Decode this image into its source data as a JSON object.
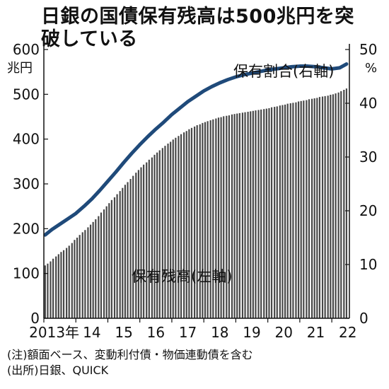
{
  "title": "日銀の国債保有残高は500兆円を突破している",
  "notes": [
    "(注)額面ベース、変動利付債・物価連動債を含む",
    "(出所)日銀、QUICK"
  ],
  "colors": {
    "bars": "#474747",
    "line": "#1f4a7a",
    "axis": "#111111",
    "background": "#ffffff"
  },
  "chart_data": {
    "type": "bar",
    "grid": false,
    "left_axis": {
      "unit": "兆円",
      "ticks": [
        "0",
        "100",
        "200",
        "300",
        "400",
        "500",
        "600"
      ],
      "range": [
        0,
        600
      ]
    },
    "right_axis": {
      "unit": "%",
      "ticks": [
        "0",
        "10",
        "20",
        "30",
        "40",
        "50"
      ],
      "range": [
        0,
        50
      ]
    },
    "x_axis": {
      "ticks": [
        "2013年",
        "14",
        "15",
        "16",
        "17",
        "18",
        "19",
        "20",
        "21",
        "22"
      ],
      "start_year": 2013,
      "end_year": 2022
    },
    "series": [
      {
        "name": "保有残高(左軸)",
        "axis": "left",
        "type": "bar",
        "x": [
          2013.04,
          2013.12,
          2013.21,
          2013.29,
          2013.38,
          2013.46,
          2013.54,
          2013.62,
          2013.71,
          2013.79,
          2013.88,
          2013.96,
          2014.04,
          2014.12,
          2014.21,
          2014.29,
          2014.38,
          2014.46,
          2014.54,
          2014.62,
          2014.71,
          2014.79,
          2014.88,
          2014.96,
          2015.04,
          2015.12,
          2015.21,
          2015.29,
          2015.38,
          2015.46,
          2015.54,
          2015.62,
          2015.71,
          2015.79,
          2015.88,
          2015.96,
          2016.04,
          2016.12,
          2016.21,
          2016.29,
          2016.38,
          2016.46,
          2016.54,
          2016.62,
          2016.71,
          2016.79,
          2016.88,
          2016.96,
          2017.04,
          2017.12,
          2017.21,
          2017.29,
          2017.38,
          2017.46,
          2017.54,
          2017.62,
          2017.71,
          2017.79,
          2017.88,
          2017.96,
          2018.04,
          2018.12,
          2018.21,
          2018.29,
          2018.38,
          2018.46,
          2018.54,
          2018.62,
          2018.71,
          2018.79,
          2018.88,
          2018.96,
          2019.04,
          2019.12,
          2019.21,
          2019.29,
          2019.38,
          2019.46,
          2019.54,
          2019.62,
          2019.71,
          2019.79,
          2019.88,
          2019.96,
          2020.04,
          2020.12,
          2020.21,
          2020.29,
          2020.38,
          2020.46,
          2020.54,
          2020.62,
          2020.71,
          2020.79,
          2020.88,
          2020.96,
          2021.04,
          2021.12,
          2021.21,
          2021.29,
          2021.38,
          2021.46,
          2021.54,
          2021.62,
          2021.71,
          2021.79,
          2021.88,
          2021.96,
          2022.04,
          2022.12,
          2022.21,
          2022.29,
          2022.38,
          2022.46
        ],
        "values": [
          118,
          122,
          127,
          133,
          138,
          143,
          148,
          152,
          157,
          162,
          168,
          175,
          180,
          186,
          192,
          197,
          203,
          209,
          215,
          221,
          228,
          236,
          243,
          250,
          257,
          264,
          270,
          277,
          284,
          291,
          298,
          304,
          311,
          318,
          325,
          331,
          337,
          343,
          348,
          354,
          359,
          365,
          370,
          375,
          380,
          385,
          390,
          394,
          399,
          403,
          407,
          411,
          415,
          418,
          422,
          425,
          428,
          431,
          433,
          436,
          438,
          440,
          442,
          444,
          446,
          448,
          449,
          451,
          452,
          453,
          455,
          456,
          457,
          458,
          459,
          460,
          461,
          462,
          463,
          464,
          465,
          466,
          467,
          468,
          469,
          471,
          472,
          473,
          475,
          476,
          477,
          479,
          480,
          481,
          482,
          484,
          485,
          486,
          487,
          489,
          490,
          491,
          492,
          494,
          495,
          496,
          497,
          499,
          500,
          502,
          504,
          507,
          510,
          513
        ]
      },
      {
        "name": "保有割合(右軸)",
        "axis": "right",
        "type": "line",
        "x": [
          2013.04,
          2013.25,
          2013.5,
          2013.75,
          2014.0,
          2014.25,
          2014.5,
          2014.75,
          2015.0,
          2015.25,
          2015.5,
          2015.75,
          2016.0,
          2016.25,
          2016.5,
          2016.75,
          2017.0,
          2017.25,
          2017.5,
          2017.75,
          2018.0,
          2018.25,
          2018.5,
          2018.75,
          2019.0,
          2019.25,
          2019.5,
          2019.75,
          2020.0,
          2020.25,
          2020.5,
          2020.75,
          2021.0,
          2021.25,
          2021.5,
          2021.75,
          2022.0,
          2022.25,
          2022.46
        ],
        "values": [
          15.5,
          16.5,
          17.5,
          18.5,
          19.5,
          20.8,
          22.2,
          23.8,
          25.5,
          27.2,
          29.0,
          30.7,
          32.3,
          33.8,
          35.2,
          36.5,
          37.9,
          39.1,
          40.3,
          41.3,
          42.3,
          43.1,
          43.8,
          44.4,
          44.9,
          45.3,
          45.6,
          45.9,
          46.2,
          46.4,
          46.6,
          46.8,
          46.9,
          46.9,
          46.8,
          46.6,
          46.4,
          46.6,
          47.3
        ]
      }
    ],
    "annotations": [
      "保有割合(右軸)",
      "保有残高(左軸)"
    ]
  }
}
